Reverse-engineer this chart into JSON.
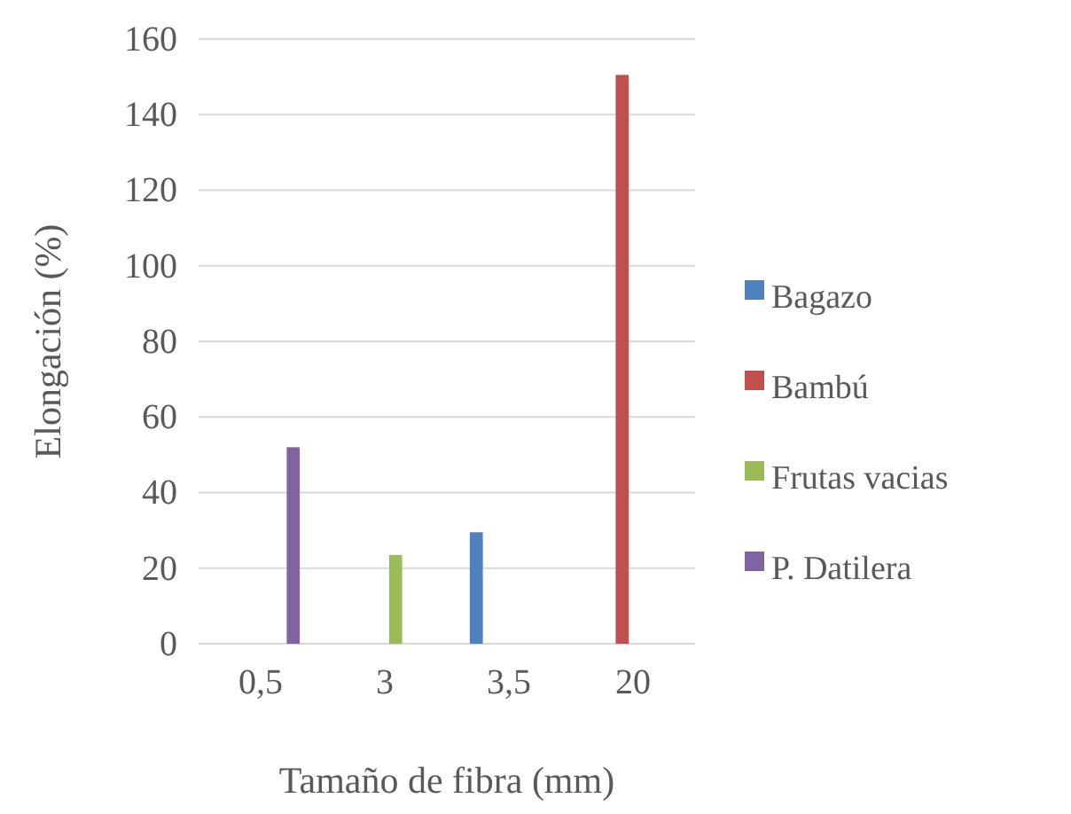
{
  "chart_data": {
    "type": "bar",
    "xlabel": "Tamaño de fibra (mm)",
    "ylabel": "Elongación (%)",
    "categories": [
      "0,5",
      "3",
      "3,5",
      "20"
    ],
    "series": [
      {
        "name": "Bagazo",
        "color": "#4f81bd",
        "values": [
          null,
          null,
          29.5,
          null
        ]
      },
      {
        "name": "Bambú",
        "color": "#c0504d",
        "values": [
          null,
          null,
          null,
          150.5
        ]
      },
      {
        "name": "Frutas vacias",
        "color": "#9bbb59",
        "values": [
          null,
          23.5,
          null,
          null
        ]
      },
      {
        "name": "P. Datilera",
        "color": "#8064a2",
        "values": [
          52,
          null,
          null,
          null
        ]
      }
    ],
    "ylim": [
      0,
      160
    ],
    "yticks": [
      0,
      20,
      40,
      60,
      80,
      100,
      120,
      140,
      160
    ],
    "grid": "y",
    "legend": "right"
  }
}
